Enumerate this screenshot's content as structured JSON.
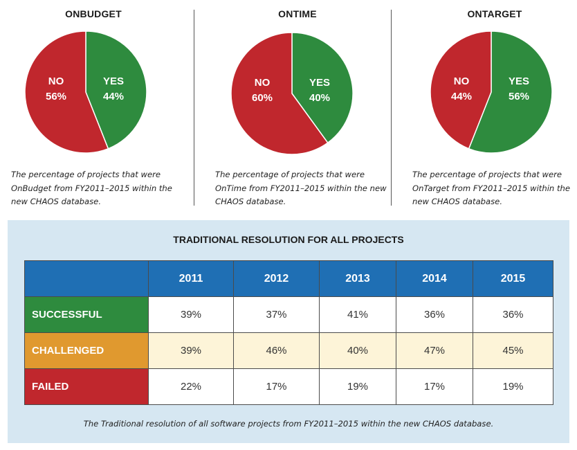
{
  "colors": {
    "yes": "#2e8b3e",
    "no": "#c0272d",
    "header": "#1f6fb4",
    "successful": "#2e8b3e",
    "challenged": "#e0992f",
    "failed": "#c0272d",
    "section_bg": "#d6e7f2"
  },
  "chart_data": [
    {
      "type": "pie",
      "title": "ONBUDGET",
      "slices": [
        {
          "label": "YES",
          "value": 44,
          "display": "44%"
        },
        {
          "label": "NO",
          "value": 56,
          "display": "56%"
        }
      ],
      "caption": "The percentage of projects that were OnBudget from FY2011–2015 within the new CHAOS database."
    },
    {
      "type": "pie",
      "title": "ONTIME",
      "slices": [
        {
          "label": "YES",
          "value": 40,
          "display": "40%"
        },
        {
          "label": "NO",
          "value": 60,
          "display": "60%"
        }
      ],
      "caption": "The percentage of projects that were OnTime from FY2011–2015 within the new CHAOS database."
    },
    {
      "type": "pie",
      "title": "ONTARGET",
      "slices": [
        {
          "label": "YES",
          "value": 56,
          "display": "56%"
        },
        {
          "label": "NO",
          "value": 44,
          "display": "44%"
        }
      ],
      "caption": "The percentage of projects that were OnTarget from FY2011–2015 within the new CHAOS database."
    },
    {
      "type": "table",
      "title": "TRADITIONAL RESOLUTION FOR ALL PROJECTS",
      "columns": [
        "2011",
        "2012",
        "2013",
        "2014",
        "2015"
      ],
      "rows": [
        {
          "label": "SUCCESSFUL",
          "values": [
            "39%",
            "37%",
            "41%",
            "36%",
            "36%"
          ]
        },
        {
          "label": "CHALLENGED",
          "values": [
            "39%",
            "46%",
            "40%",
            "47%",
            "45%"
          ]
        },
        {
          "label": "FAILED",
          "values": [
            "22%",
            "17%",
            "19%",
            "17%",
            "19%"
          ]
        }
      ],
      "caption": "The Traditional resolution of all software projects from FY2011–2015 within the new CHAOS database."
    }
  ]
}
